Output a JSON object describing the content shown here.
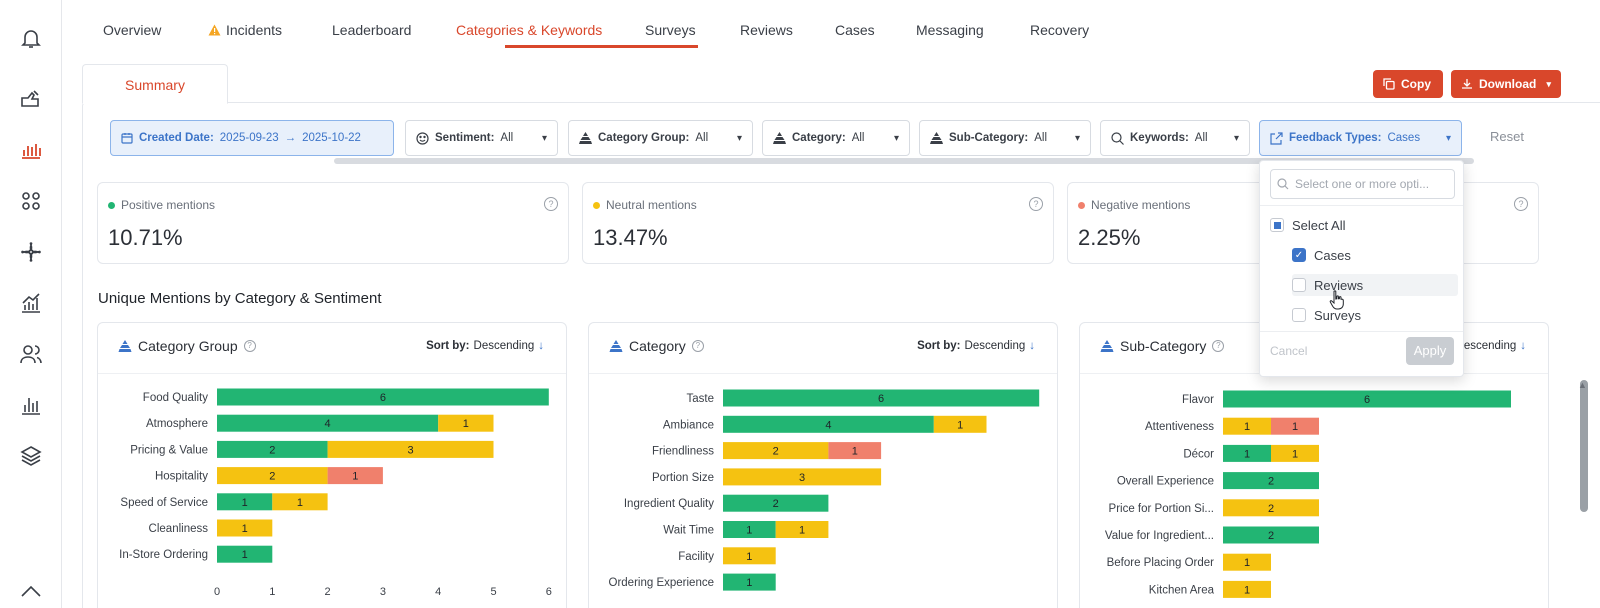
{
  "nav": {
    "tabs": [
      {
        "label": "Overview"
      },
      {
        "label": "Incidents",
        "warning": true
      },
      {
        "label": "Leaderboard"
      },
      {
        "label": "Categories & Keywords",
        "active": true
      },
      {
        "label": "Surveys"
      },
      {
        "label": "Reviews"
      },
      {
        "label": "Cases"
      },
      {
        "label": "Messaging"
      },
      {
        "label": "Recovery"
      }
    ]
  },
  "summary_tab": "Summary",
  "actions": {
    "copy": "Copy",
    "download": "Download"
  },
  "filters": {
    "created_date_label": "Created Date:",
    "created_date_from": "2025-09-23",
    "created_date_to": "2025-10-22",
    "sentiment_label": "Sentiment:",
    "sentiment_value": "All",
    "category_group_label": "Category Group:",
    "category_group_value": "All",
    "category_label": "Category:",
    "category_value": "All",
    "subcategory_label": "Sub-Category:",
    "subcategory_value": "All",
    "keywords_label": "Keywords:",
    "keywords_value": "All",
    "feedback_label": "Feedback Types:",
    "feedback_value": "Cases",
    "reset": "Reset"
  },
  "stats": [
    {
      "label": "Positive mentions",
      "value": "10.71%",
      "color": "#22b573"
    },
    {
      "label": "Neutral mentions",
      "value": "13.47%",
      "color": "#f5c211"
    },
    {
      "label": "Negative mentions",
      "value": "2.25%",
      "color": "#f0806c"
    }
  ],
  "section_title": "Unique Mentions by Category & Sentiment",
  "sort": {
    "label": "Sort by:",
    "value": "Descending"
  },
  "dropdown": {
    "placeholder": "Select one or more opti...",
    "select_all": "Select All",
    "options": [
      {
        "label": "Cases",
        "checked": true
      },
      {
        "label": "Reviews",
        "checked": false
      },
      {
        "label": "Surveys",
        "checked": false
      }
    ],
    "cancel": "Cancel",
    "apply": "Apply"
  },
  "colors": {
    "positive": "#22b573",
    "neutral": "#f5c211",
    "negative": "#f0806c",
    "accent": "#d9472b",
    "link": "#3c74c8"
  },
  "chart_data": [
    {
      "type": "bar",
      "orientation": "horizontal",
      "stacked": true,
      "title": "Category Group",
      "categories": [
        "Food Quality",
        "Atmosphere",
        "Pricing & Value",
        "Hospitality",
        "Speed of Service",
        "Cleanliness",
        "In-Store Ordering"
      ],
      "series": [
        {
          "name": "Positive",
          "values": [
            6,
            4,
            2,
            0,
            1,
            0,
            1
          ]
        },
        {
          "name": "Neutral",
          "values": [
            0,
            1,
            3,
            2,
            1,
            1,
            0
          ]
        },
        {
          "name": "Negative",
          "values": [
            0,
            0,
            0,
            1,
            0,
            0,
            0
          ]
        }
      ],
      "xlim": [
        0,
        6
      ],
      "xticks": [
        0,
        1,
        2,
        3,
        4,
        5,
        6
      ]
    },
    {
      "type": "bar",
      "orientation": "horizontal",
      "stacked": true,
      "title": "Category",
      "categories": [
        "Taste",
        "Ambiance",
        "Friendliness",
        "Portion Size",
        "Ingredient Quality",
        "Wait Time",
        "Facility",
        "Ordering Experience"
      ],
      "series": [
        {
          "name": "Positive",
          "values": [
            6,
            4,
            0,
            0,
            2,
            1,
            0,
            1
          ]
        },
        {
          "name": "Neutral",
          "values": [
            0,
            1,
            2,
            3,
            0,
            1,
            1,
            0
          ]
        },
        {
          "name": "Negative",
          "values": [
            0,
            0,
            1,
            0,
            0,
            0,
            0,
            0
          ]
        }
      ],
      "xlim": [
        0,
        6
      ]
    },
    {
      "type": "bar",
      "orientation": "horizontal",
      "stacked": true,
      "title": "Sub-Category",
      "categories": [
        "Flavor",
        "Attentiveness",
        "Décor",
        "Overall Experience",
        "Price for Portion Si...",
        "Value for Ingredient...",
        "Before Placing Order",
        "Kitchen Area"
      ],
      "series": [
        {
          "name": "Positive",
          "values": [
            6,
            0,
            1,
            2,
            0,
            2,
            0,
            0
          ]
        },
        {
          "name": "Neutral",
          "values": [
            0,
            1,
            1,
            0,
            2,
            0,
            1,
            1
          ]
        },
        {
          "name": "Negative",
          "values": [
            0,
            1,
            0,
            0,
            0,
            0,
            0,
            0
          ]
        }
      ],
      "xlim": [
        0,
        6
      ]
    }
  ]
}
